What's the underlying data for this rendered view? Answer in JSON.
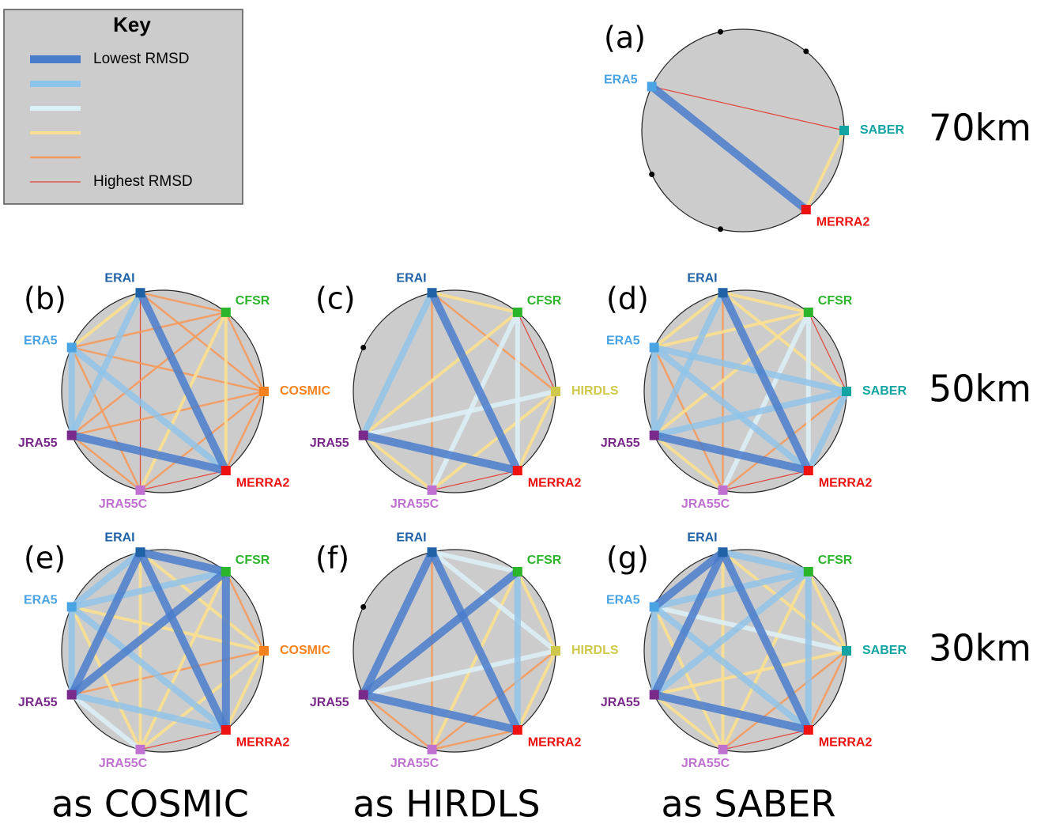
{
  "key": {
    "title": "Key",
    "levels": [
      {
        "level": 1,
        "color": "#4a7ccb",
        "label": "Lowest RMSD"
      },
      {
        "level": 2,
        "color": "#8ec3ea"
      },
      {
        "level": 3,
        "color": "#dcf0f7"
      },
      {
        "level": 4,
        "color": "#fbe08f"
      },
      {
        "level": 5,
        "color": "#f59a5c"
      },
      {
        "level": 6,
        "color": "#e4433c",
        "label": "Highest RMSD"
      }
    ]
  },
  "node_colors": {
    "ERAI": "#1f62a5",
    "CFSR": "#2bb52b",
    "COSMIC": "#f5821f",
    "HIRDLS": "#cfc84c",
    "SABER": "#12a3a3",
    "MERRA2": "#ee1111",
    "JRA55C": "#c070d0",
    "JRA55": "#7a2a8a",
    "ERA5": "#4aa3e2"
  },
  "row_labels": [
    "70km",
    "50km",
    "30km"
  ],
  "column_labels": [
    "as COSMIC",
    "as HIRDLS",
    "as SABER"
  ],
  "panels": [
    {
      "label": "(a)",
      "nodes": [
        null,
        null,
        "SABER",
        "MERRA2",
        null,
        null,
        "ERA5"
      ],
      "edges": [
        {
          "from": "ERA5",
          "to": "MERRA2",
          "level": 1
        },
        {
          "from": "ERA5",
          "to": "SABER",
          "level": 6
        },
        {
          "from": "SABER",
          "to": "MERRA2",
          "level": 4
        }
      ]
    },
    {
      "label": "(b)",
      "nodes": [
        "ERAI",
        "CFSR",
        "COSMIC",
        "MERRA2",
        "JRA55C",
        "JRA55",
        "ERA5"
      ],
      "edges": [
        {
          "from": "ERAI",
          "to": "CFSR",
          "level": 5
        },
        {
          "from": "ERAI",
          "to": "COSMIC",
          "level": 5
        },
        {
          "from": "ERAI",
          "to": "JRA55C",
          "level": 6
        },
        {
          "from": "ERAI",
          "to": "ERA5",
          "level": 4
        },
        {
          "from": "CFSR",
          "to": "MERRA2",
          "level": 4
        },
        {
          "from": "CFSR",
          "to": "JRA55C",
          "level": 4
        },
        {
          "from": "CFSR",
          "to": "ERA5",
          "level": 5
        },
        {
          "from": "CFSR",
          "to": "JRA55",
          "level": 5
        },
        {
          "from": "CFSR",
          "to": "COSMIC",
          "level": 5
        },
        {
          "from": "COSMIC",
          "to": "ERA5",
          "level": 5
        },
        {
          "from": "COSMIC",
          "to": "JRA55",
          "level": 5
        },
        {
          "from": "COSMIC",
          "to": "JRA55C",
          "level": 5
        },
        {
          "from": "COSMIC",
          "to": "MERRA2",
          "level": 5
        },
        {
          "from": "JRA55",
          "to": "JRA55C",
          "level": 5
        },
        {
          "from": "ERA5",
          "to": "JRA55C",
          "level": 5
        },
        {
          "from": "JRA55C",
          "to": "MERRA2",
          "level": 6
        },
        {
          "from": "ERAI",
          "to": "JRA55",
          "level": 2
        },
        {
          "from": "ERA5",
          "to": "JRA55",
          "level": 2
        },
        {
          "from": "ERA5",
          "to": "MERRA2",
          "level": 2
        },
        {
          "from": "ERAI",
          "to": "MERRA2",
          "level": 1
        },
        {
          "from": "JRA55",
          "to": "MERRA2",
          "level": 1
        }
      ]
    },
    {
      "label": "(c)",
      "nodes": [
        "ERAI",
        "CFSR",
        "HIRDLS",
        "MERRA2",
        "JRA55C",
        "JRA55",
        null
      ],
      "edges": [
        {
          "from": "ERAI",
          "to": "HIRDLS",
          "level": 5
        },
        {
          "from": "ERAI",
          "to": "JRA55C",
          "level": 5
        },
        {
          "from": "CFSR",
          "to": "HIRDLS",
          "level": 6
        },
        {
          "from": "JRA55C",
          "to": "MERRA2",
          "level": 6
        },
        {
          "from": "ERAI",
          "to": "CFSR",
          "level": 4
        },
        {
          "from": "CFSR",
          "to": "JRA55",
          "level": 4
        },
        {
          "from": "HIRDLS",
          "to": "JRA55C",
          "level": 4
        },
        {
          "from": "MERRA2",
          "to": "HIRDLS",
          "level": 4
        },
        {
          "from": "JRA55",
          "to": "JRA55C",
          "level": 4
        },
        {
          "from": "CFSR",
          "to": "JRA55C",
          "level": 3
        },
        {
          "from": "HIRDLS",
          "to": "JRA55",
          "level": 3
        },
        {
          "from": "CFSR",
          "to": "MERRA2",
          "level": 3
        },
        {
          "from": "ERAI",
          "to": "JRA55",
          "level": 2
        },
        {
          "from": "ERAI",
          "to": "MERRA2",
          "level": 1
        },
        {
          "from": "JRA55",
          "to": "MERRA2",
          "level": 1
        }
      ]
    },
    {
      "label": "(d)",
      "nodes": [
        "ERAI",
        "CFSR",
        "SABER",
        "MERRA2",
        "JRA55C",
        "JRA55",
        "ERA5"
      ],
      "edges": [
        {
          "from": "CFSR",
          "to": "SABER",
          "level": 6
        },
        {
          "from": "JRA55C",
          "to": "MERRA2",
          "level": 6
        },
        {
          "from": "ERA5",
          "to": "JRA55C",
          "level": 5
        },
        {
          "from": "ERAI",
          "to": "JRA55C",
          "level": 5
        },
        {
          "from": "SABER",
          "to": "JRA55C",
          "level": 5
        },
        {
          "from": "ERAI",
          "to": "ERA5",
          "level": 4
        },
        {
          "from": "ERAI",
          "to": "CFSR",
          "level": 4
        },
        {
          "from": "ERAI",
          "to": "SABER",
          "level": 4
        },
        {
          "from": "CFSR",
          "to": "ERA5",
          "level": 4
        },
        {
          "from": "CFSR",
          "to": "JRA55",
          "level": 4
        },
        {
          "from": "JRA55",
          "to": "JRA55C",
          "level": 4
        },
        {
          "from": "CFSR",
          "to": "JRA55C",
          "level": 3
        },
        {
          "from": "CFSR",
          "to": "MERRA2",
          "level": 3
        },
        {
          "from": "ERAI",
          "to": "JRA55",
          "level": 2
        },
        {
          "from": "ERA5",
          "to": "JRA55",
          "level": 2
        },
        {
          "from": "ERA5",
          "to": "SABER",
          "level": 2
        },
        {
          "from": "ERA5",
          "to": "MERRA2",
          "level": 2
        },
        {
          "from": "SABER",
          "to": "JRA55",
          "level": 2
        },
        {
          "from": "SABER",
          "to": "MERRA2",
          "level": 2
        },
        {
          "from": "ERAI",
          "to": "MERRA2",
          "level": 1
        },
        {
          "from": "JRA55",
          "to": "MERRA2",
          "level": 1
        }
      ]
    },
    {
      "label": "(e)",
      "nodes": [
        "ERAI",
        "CFSR",
        "COSMIC",
        "MERRA2",
        "JRA55C",
        "JRA55",
        "ERA5"
      ],
      "edges": [
        {
          "from": "JRA55C",
          "to": "MERRA2",
          "level": 6
        },
        {
          "from": "COSMIC",
          "to": "JRA55",
          "level": 5
        },
        {
          "from": "COSMIC",
          "to": "CFSR",
          "level": 5
        },
        {
          "from": "ERAI",
          "to": "JRA55C",
          "level": 4
        },
        {
          "from": "CFSR",
          "to": "JRA55C",
          "level": 4
        },
        {
          "from": "COSMIC",
          "to": "ERA5",
          "level": 4
        },
        {
          "from": "COSMIC",
          "to": "ERAI",
          "level": 4
        },
        {
          "from": "COSMIC",
          "to": "MERRA2",
          "level": 4
        },
        {
          "from": "COSMIC",
          "to": "JRA55C",
          "level": 4
        },
        {
          "from": "ERA5",
          "to": "JRA55C",
          "level": 4
        },
        {
          "from": "JRA55",
          "to": "JRA55C",
          "level": 3
        },
        {
          "from": "JRA55",
          "to": "MERRA2",
          "level": 2
        },
        {
          "from": "ERA5",
          "to": "JRA55",
          "level": 2
        },
        {
          "from": "ERA5",
          "to": "CFSR",
          "level": 2
        },
        {
          "from": "ERA5",
          "to": "MERRA2",
          "level": 2
        },
        {
          "from": "ERAI",
          "to": "ERA5",
          "level": 2
        },
        {
          "from": "ERAI",
          "to": "CFSR",
          "level": 1
        },
        {
          "from": "ERAI",
          "to": "JRA55",
          "level": 1
        },
        {
          "from": "ERAI",
          "to": "MERRA2",
          "level": 1
        },
        {
          "from": "CFSR",
          "to": "JRA55",
          "level": 1
        },
        {
          "from": "CFSR",
          "to": "MERRA2",
          "level": 1
        }
      ]
    },
    {
      "label": "(f)",
      "nodes": [
        "ERAI",
        "CFSR",
        "HIRDLS",
        "MERRA2",
        "JRA55C",
        "JRA55",
        null
      ],
      "edges": [
        {
          "from": "ERAI",
          "to": "JRA55C",
          "level": 5
        },
        {
          "from": "HIRDLS",
          "to": "JRA55C",
          "level": 5
        },
        {
          "from": "JRA55",
          "to": "JRA55C",
          "level": 5
        },
        {
          "from": "JRA55C",
          "to": "MERRA2",
          "level": 5
        },
        {
          "from": "CFSR",
          "to": "JRA55C",
          "level": 4
        },
        {
          "from": "CFSR",
          "to": "HIRDLS",
          "level": 4
        },
        {
          "from": "HIRDLS",
          "to": "MERRA2",
          "level": 4
        },
        {
          "from": "ERAI",
          "to": "CFSR",
          "level": 3
        },
        {
          "from": "ERAI",
          "to": "HIRDLS",
          "level": 3
        },
        {
          "from": "HIRDLS",
          "to": "JRA55",
          "level": 3
        },
        {
          "from": "CFSR",
          "to": "MERRA2",
          "level": 2
        },
        {
          "from": "ERAI",
          "to": "JRA55",
          "level": 1
        },
        {
          "from": "ERAI",
          "to": "MERRA2",
          "level": 1
        },
        {
          "from": "CFSR",
          "to": "JRA55",
          "level": 1
        },
        {
          "from": "JRA55",
          "to": "MERRA2",
          "level": 1
        }
      ]
    },
    {
      "label": "(g)",
      "nodes": [
        "ERAI",
        "CFSR",
        "SABER",
        "MERRA2",
        "JRA55C",
        "JRA55",
        "ERA5"
      ],
      "edges": [
        {
          "from": "JRA55C",
          "to": "MERRA2",
          "level": 6
        },
        {
          "from": "SABER",
          "to": "MERRA2",
          "level": 5
        },
        {
          "from": "JRA55C",
          "to": "SABER",
          "level": 5
        },
        {
          "from": "SABER",
          "to": "JRA55",
          "level": 4
        },
        {
          "from": "ERAI",
          "to": "SABER",
          "level": 4
        },
        {
          "from": "CFSR",
          "to": "SABER",
          "level": 4
        },
        {
          "from": "CFSR",
          "to": "JRA55C",
          "level": 4
        },
        {
          "from": "ERAI",
          "to": "JRA55C",
          "level": 4
        },
        {
          "from": "JRA55",
          "to": "JRA55C",
          "level": 4
        },
        {
          "from": "ERA5",
          "to": "JRA55C",
          "level": 4
        },
        {
          "from": "SABER",
          "to": "ERA5",
          "level": 3
        },
        {
          "from": "ERAI",
          "to": "CFSR",
          "level": 2
        },
        {
          "from": "CFSR",
          "to": "ERA5",
          "level": 2
        },
        {
          "from": "CFSR",
          "to": "JRA55",
          "level": 2
        },
        {
          "from": "ERA5",
          "to": "JRA55",
          "level": 2
        },
        {
          "from": "ERA5",
          "to": "MERRA2",
          "level": 2
        },
        {
          "from": "CFSR",
          "to": "MERRA2",
          "level": 2
        },
        {
          "from": "ERAI",
          "to": "JRA55",
          "level": 1
        },
        {
          "from": "ERAI",
          "to": "MERRA2",
          "level": 1
        },
        {
          "from": "ERAI",
          "to": "ERA5",
          "level": 1
        },
        {
          "from": "JRA55",
          "to": "MERRA2",
          "level": 1
        }
      ]
    }
  ]
}
